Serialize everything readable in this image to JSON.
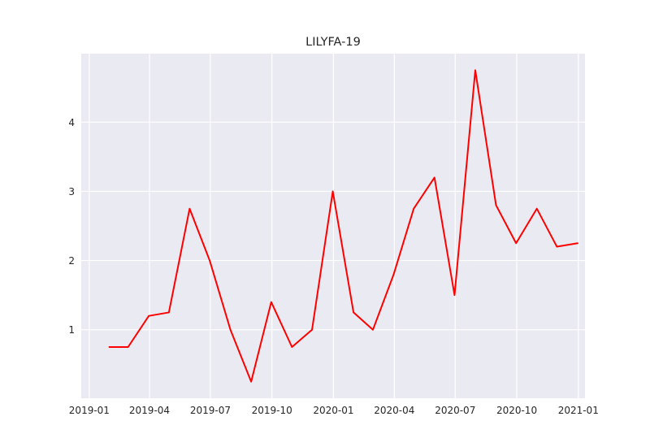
{
  "chart_data": {
    "type": "line",
    "title": "LILYFA-19",
    "xlabel": "",
    "ylabel": "",
    "grid": true,
    "background": "#eaeaf2",
    "line_color": "#ff0000",
    "x": [
      "2019-01-31",
      "2019-02-28",
      "2019-03-31",
      "2019-04-30",
      "2019-05-31",
      "2019-06-30",
      "2019-07-31",
      "2019-08-31",
      "2019-09-30",
      "2019-10-31",
      "2019-11-30",
      "2019-12-31",
      "2020-01-31",
      "2020-02-29",
      "2020-03-31",
      "2020-04-30",
      "2020-05-31",
      "2020-06-30",
      "2020-07-31",
      "2020-08-31",
      "2020-09-30",
      "2020-10-31",
      "2020-11-30",
      "2020-12-31"
    ],
    "series": [
      {
        "values": [
          0.75,
          0.75,
          1.2,
          1.25,
          2.75,
          2.0,
          1.0,
          0.25,
          1.4,
          0.75,
          1.0,
          3.0,
          1.25,
          1.0,
          1.8,
          2.75,
          3.2,
          1.5,
          4.75,
          2.8,
          2.25,
          2.75,
          2.2,
          2.25
        ]
      }
    ],
    "xlim": [
      "2018-12-20",
      "2021-01-11"
    ],
    "ylim": [
      0.01,
      4.99
    ],
    "x_ticks": [
      "2019-01-01",
      "2019-04-01",
      "2019-07-01",
      "2019-10-01",
      "2020-01-01",
      "2020-04-01",
      "2020-07-01",
      "2020-10-01",
      "2021-01-01"
    ],
    "x_tick_labels": [
      "2019-01",
      "2019-04",
      "2019-07",
      "2019-10",
      "2020-01",
      "2020-04",
      "2020-07",
      "2020-10",
      "2021-01"
    ],
    "y_ticks": [
      1,
      2,
      3,
      4
    ],
    "y_tick_labels": [
      "1",
      "2",
      "3",
      "4"
    ]
  }
}
